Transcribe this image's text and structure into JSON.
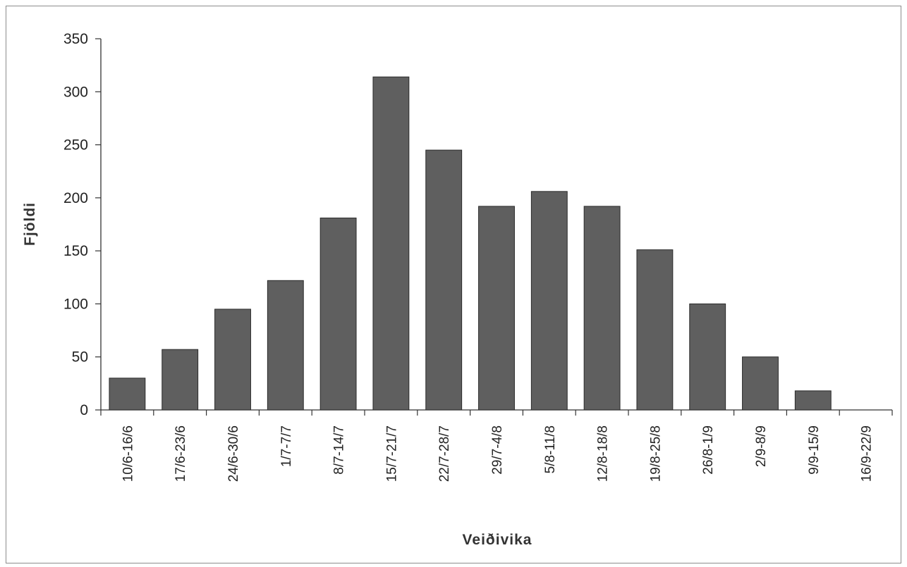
{
  "chart_data": {
    "type": "bar",
    "title": "",
    "xlabel": "Veiðivika",
    "ylabel": "Fjöldi",
    "ylim": [
      0,
      350
    ],
    "yticks": [
      0,
      50,
      100,
      150,
      200,
      250,
      300,
      350
    ],
    "grid": false,
    "legend": "none",
    "bar_color": "#5f5f5f",
    "categories": [
      "10/6-16/6",
      "17/6-23/6",
      "24/6-30/6",
      "1/7-7/7",
      "8/7-14/7",
      "15/7-21/7",
      "22/7-28/7",
      "29/7-4/8",
      "5/8-11/8",
      "12/8-18/8",
      "19/8-25/8",
      "26/8-1/9",
      "2/9-8/9",
      "9/9-15/9",
      "16/9-22/9"
    ],
    "values": [
      30,
      57,
      95,
      122,
      181,
      314,
      245,
      192,
      206,
      192,
      151,
      100,
      50,
      18,
      0
    ]
  }
}
